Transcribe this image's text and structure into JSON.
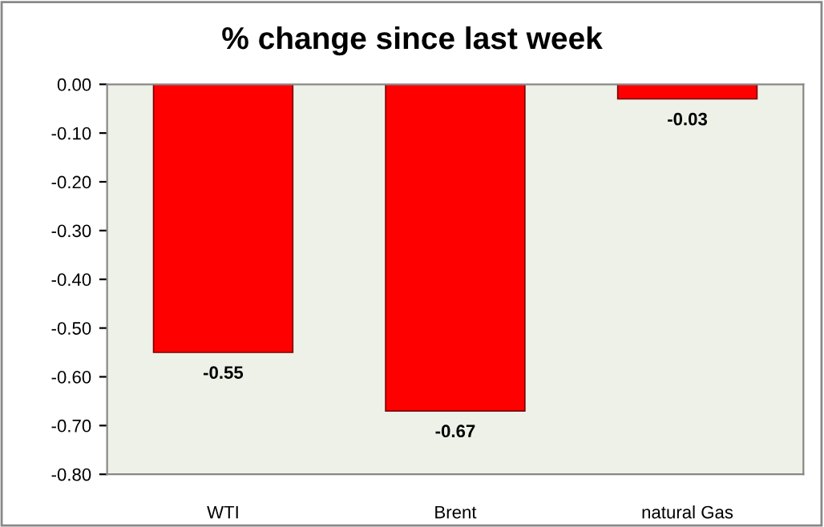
{
  "chart_data": {
    "type": "bar",
    "title": "% change since last week",
    "categories": [
      "WTI",
      "Brent",
      "natural Gas"
    ],
    "values": [
      -0.55,
      -0.67,
      -0.03
    ],
    "color": "#ff0000",
    "ylim": [
      -0.8,
      0
    ],
    "yticks": [
      {
        "value": 0,
        "label": "0.00"
      },
      {
        "value": -0.1,
        "label": "-0.10"
      },
      {
        "value": -0.2,
        "label": "-0.20"
      },
      {
        "value": -0.3,
        "label": "-0.30"
      },
      {
        "value": -0.4,
        "label": "-0.40"
      },
      {
        "value": -0.5,
        "label": "-0.50"
      },
      {
        "value": -0.6,
        "label": "-0.60"
      },
      {
        "value": -0.7,
        "label": "-0.70"
      },
      {
        "value": -0.8,
        "label": "-0.80"
      }
    ],
    "data_labels": true,
    "grid": false
  }
}
